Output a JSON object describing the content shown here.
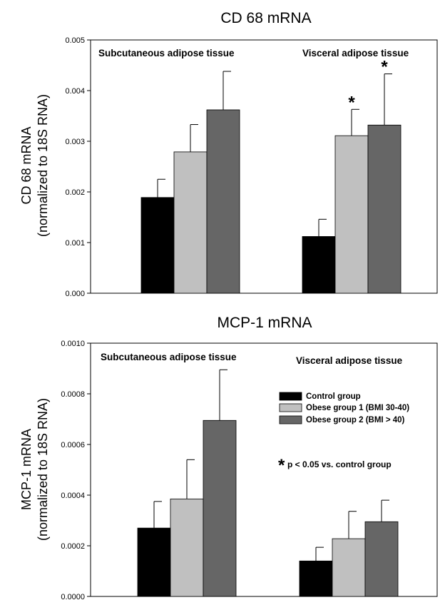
{
  "chart_data": [
    {
      "type": "bar",
      "title": "CD 68 mRNA",
      "ylabel": "CD 68 mRNA",
      "ylabel_sub": "(normalized to 18S RNA)",
      "ylim": [
        0,
        0.005
      ],
      "yticks": [
        "0.000",
        "0.001",
        "0.002",
        "0.003",
        "0.004",
        "0.005"
      ],
      "categories": [
        "Subcutaneous adipose tissue",
        "Visceral adipose tissue"
      ],
      "series": [
        {
          "name": "Control group",
          "color": "#000000",
          "values": [
            0.00189,
            0.00112
          ],
          "errors": [
            0.00036,
            0.00034
          ],
          "stars": [
            false,
            false
          ]
        },
        {
          "name": "Obese group 1 (BMI 30-40)",
          "color": "#c0c0c0",
          "values": [
            0.00279,
            0.00311
          ],
          "errors": [
            0.00054,
            0.00052
          ],
          "stars": [
            false,
            true
          ]
        },
        {
          "name": "Obese group 2 (BMI > 40)",
          "color": "#666666",
          "values": [
            0.00362,
            0.00332
          ],
          "errors": [
            0.00076,
            0.00101
          ],
          "stars": [
            false,
            true
          ]
        }
      ],
      "star_symbol": "*",
      "grid": false
    },
    {
      "type": "bar",
      "title": "MCP-1 mRNA",
      "ylabel": "MCP-1 mRNA",
      "ylabel_sub": "(normalized to 18S RNA)",
      "ylim": [
        0,
        0.001
      ],
      "yticks": [
        "0.0000",
        "0.0002",
        "0.0004",
        "0.0006",
        "0.0008",
        "0.0010"
      ],
      "categories": [
        "Subcutaneous adipose tissue",
        "Visceral adipose tissue"
      ],
      "series": [
        {
          "name": "Control group",
          "color": "#000000",
          "values": [
            0.00027,
            0.00014
          ],
          "errors": [
            0.000105,
            5.4e-05
          ],
          "stars": [
            false,
            false
          ]
        },
        {
          "name": "Obese group 1 (BMI 30-40)",
          "color": "#c0c0c0",
          "values": [
            0.000385,
            0.000228
          ],
          "errors": [
            0.000155,
            0.000108
          ],
          "stars": [
            false,
            false
          ]
        },
        {
          "name": "Obese group 2 (BMI > 40)",
          "color": "#666666",
          "values": [
            0.000695,
            0.000295
          ],
          "errors": [
            0.0002,
            8.5e-05
          ],
          "stars": [
            false,
            false
          ]
        }
      ],
      "legend": {
        "placement": "center-right",
        "entries": [
          "Control group",
          "Obese group 1 (BMI 30-40)",
          "Obese group 2 (BMI > 40)"
        ]
      },
      "note": {
        "symbol": "*",
        "text": "p < 0.05 vs. control group"
      },
      "grid": false
    }
  ]
}
